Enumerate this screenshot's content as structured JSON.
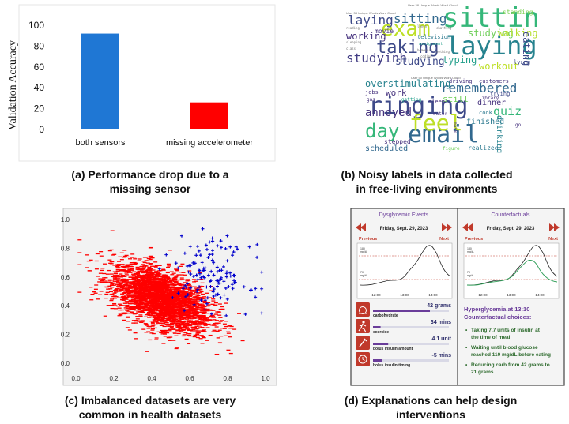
{
  "chart_a": {
    "type": "bar",
    "ylabel": "Validation Accuracy",
    "categories": [
      "both sensors",
      "missing accelerometer"
    ],
    "values": [
      92,
      26
    ],
    "colors": [
      "#1f77d4",
      "#ff0000"
    ],
    "yticks": [
      "100",
      "80",
      "60",
      "40",
      "20",
      "0"
    ],
    "ylim": [
      0,
      100
    ]
  },
  "caption_a": [
    "(a) Performance drop due to a",
    "missing sensor"
  ],
  "wordcloud_1": {
    "title": "User 38 Unique Words Word Cloud",
    "words": [
      {
        "text": "sitting",
        "color": "#35b779",
        "size": 34
      },
      {
        "text": "laying",
        "color": "#26828e",
        "size": 32
      },
      {
        "text": "exam",
        "color": "#bddf26",
        "size": 26
      },
      {
        "text": "taking",
        "color": "#3e4a89",
        "size": 22
      },
      {
        "text": "laying",
        "color": "#3e4a89",
        "size": 16
      },
      {
        "text": "sitting",
        "color": "#31688e",
        "size": 16
      },
      {
        "text": "studyinh",
        "color": "#433e85",
        "size": 16
      },
      {
        "text": "studying",
        "color": "#3e4a89",
        "size": 13
      },
      {
        "text": "studying",
        "color": "#6ece58",
        "size": 12
      },
      {
        "text": "walking",
        "color": "#b5de2b",
        "size": 12
      },
      {
        "text": "working",
        "color": "#46327e",
        "size": 12
      },
      {
        "text": "typing",
        "color": "#1f9e89",
        "size": 12
      },
      {
        "text": "workout",
        "color": "#bddf26",
        "size": 12
      },
      {
        "text": "eating",
        "color": "#3e4a89",
        "size": 12
      },
      {
        "text": "movie",
        "color": "#46327e",
        "size": 8
      },
      {
        "text": "television",
        "color": "#2a788e",
        "size": 7
      },
      {
        "text": "standing",
        "color": "#7ad151",
        "size": 8
      },
      {
        "text": "lying",
        "color": "#3e4a89",
        "size": 7
      },
      {
        "text": "assignment",
        "color": "#1f9e89",
        "size": 5
      },
      {
        "text": "reading",
        "color": "#777",
        "size": 4
      },
      {
        "text": "sleeping",
        "color": "#777",
        "size": 4
      },
      {
        "text": "lunch",
        "color": "#777",
        "size": 4
      },
      {
        "text": "homework",
        "color": "#777",
        "size": 4
      },
      {
        "text": "nothing",
        "color": "#777",
        "size": 4
      },
      {
        "text": "class",
        "color": "#777",
        "size": 4
      },
      {
        "text": "chatting",
        "color": "#777",
        "size": 4
      },
      {
        "text": "coding",
        "color": "#777",
        "size": 4
      }
    ]
  },
  "wordcloud_2": {
    "title": "User 50 Unique Words Word Cloud",
    "words": [
      {
        "text": "email",
        "color": "#31688e",
        "size": 30
      },
      {
        "text": "ringing",
        "color": "#3e4a89",
        "size": 30
      },
      {
        "text": "feel",
        "color": "#bddf26",
        "size": 28
      },
      {
        "text": "day",
        "color": "#35b779",
        "size": 24
      },
      {
        "text": "remembered",
        "color": "#31688e",
        "size": 16
      },
      {
        "text": "overstimulating",
        "color": "#26828e",
        "size": 12
      },
      {
        "text": "annoyed",
        "color": "#46327e",
        "size": 14
      },
      {
        "text": "quiz",
        "color": "#35b779",
        "size": 15
      },
      {
        "text": "work",
        "color": "#46327e",
        "size": 11
      },
      {
        "text": "still",
        "color": "#6ece58",
        "size": 11
      },
      {
        "text": "dinner",
        "color": "#46327e",
        "size": 10
      },
      {
        "text": "finished",
        "color": "#2a788e",
        "size": 10
      },
      {
        "text": "drinking",
        "color": "#26828e",
        "size": 10
      },
      {
        "text": "scheduled",
        "color": "#31688e",
        "size": 10
      },
      {
        "text": "realized",
        "color": "#2a788e",
        "size": 8
      },
      {
        "text": "stepped",
        "color": "#46327e",
        "size": 8
      },
      {
        "text": "driving",
        "color": "#46327e",
        "size": 7
      },
      {
        "text": "customers",
        "color": "#46327e",
        "size": 7
      },
      {
        "text": "trying",
        "color": "#3e4a89",
        "size": 7
      },
      {
        "text": "jobs",
        "color": "#46327e",
        "size": 7
      },
      {
        "text": "cook",
        "color": "#2a788e",
        "size": 7
      },
      {
        "text": "sleep",
        "color": "#46327e",
        "size": 7
      },
      {
        "text": "getting",
        "color": "#1f9e89",
        "size": 6
      },
      {
        "text": "mask",
        "color": "#46327e",
        "size": 6
      },
      {
        "text": "figure",
        "color": "#6ece58",
        "size": 6
      },
      {
        "text": "library",
        "color": "#46327e",
        "size": 6
      },
      {
        "text": "gas",
        "color": "#46327e",
        "size": 6
      },
      {
        "text": "water",
        "color": "#46327e",
        "size": 6
      },
      {
        "text": "go",
        "color": "#46327e",
        "size": 6
      }
    ]
  },
  "caption_b": [
    "(b) Noisy labels in data collected",
    "in free-living environments"
  ],
  "chart_c": {
    "type": "scatter",
    "xticks": [
      "0.0",
      "0.2",
      "0.4",
      "0.6",
      "0.8",
      "1.0"
    ],
    "yticks": [
      "1.0",
      "0.8",
      "0.6",
      "0.4",
      "0.2",
      "0.0"
    ],
    "xlim": [
      0,
      1
    ],
    "ylim": [
      0,
      1
    ],
    "series": [
      {
        "color": "#ff0000",
        "marker": "dash",
        "count": 3000,
        "center": [
          0.45,
          0.45
        ],
        "spread": [
          0.13,
          0.1
        ]
      },
      {
        "color": "#0000cc",
        "marker": "plus",
        "count": 140,
        "center": [
          0.72,
          0.62
        ],
        "spread": [
          0.1,
          0.12
        ]
      }
    ]
  },
  "caption_c": [
    "(c) Imbalanced datasets are very",
    "common in health datasets"
  ],
  "panel_d": {
    "left": {
      "title": "Dysglycemic Events",
      "date": "Friday, Sept. 29, 2023",
      "prev": "Previous",
      "next": "Next",
      "y_unit": "mg/dL",
      "y_hi": "180",
      "y_lo": "70",
      "x_ticks": [
        "12:00",
        "13:00",
        "14:00"
      ],
      "items": [
        {
          "value": "42 grams",
          "label": "carbohydrate",
          "fill": 0.75
        },
        {
          "value": "34 mins",
          "label": "exercise",
          "fill": 0.1
        },
        {
          "value": "4.1 unit",
          "label": "bolus insulin amount",
          "fill": 0.2
        },
        {
          "value": "-5 mins",
          "label": "bolus insulin timing",
          "fill": 0.12
        }
      ]
    },
    "right": {
      "title": "Counterfactuals",
      "date": "Friday, Sept. 29, 2023",
      "prev": "Previous",
      "next": "Next",
      "y_unit": "mg/dL",
      "y_hi": "180",
      "y_lo": "70",
      "x_ticks": [
        "12:00",
        "13:00",
        "14:00"
      ],
      "heading_1": "Hyperglycemia at 13:10",
      "heading_2": "Counterfactual choices:",
      "bullets": [
        "Taking 7.7 units of insulin at the time of meal",
        "Waiting until blood glucose reached 110 mg/dL before eating",
        "Reducing carb from 42 grams to 21 grams"
      ]
    }
  },
  "caption_d": [
    "(d) Explanations can help design",
    "interventions"
  ],
  "colors": {
    "purple": "#6a3d9a",
    "dark_red": "#c0392b",
    "panel_bg": "#f4f4f4",
    "green": "#2e9e57"
  }
}
